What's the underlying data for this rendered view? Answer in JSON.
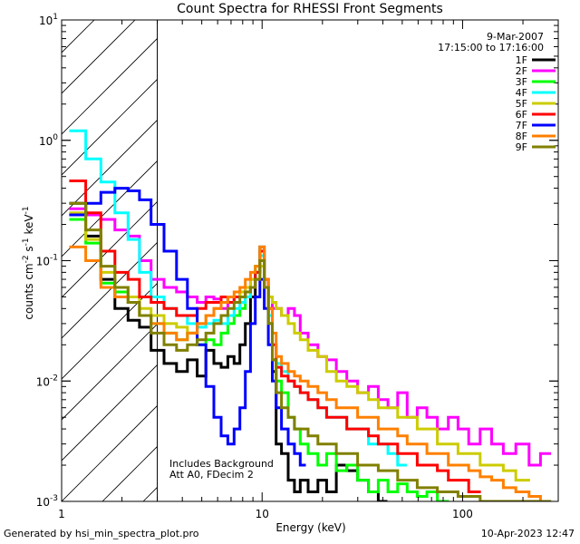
{
  "chart_data": {
    "type": "line",
    "title": "Count Spectra for RHESSI Front Segments",
    "xlabel": "Energy (keV)",
    "ylabel": "counts cm^-2 s^-1 keV^-1",
    "xscale": "log",
    "yscale": "log",
    "xlim": [
      1,
      300
    ],
    "ylim": [
      0.001,
      10
    ],
    "x_ticks": [
      {
        "value": 1,
        "label": "1"
      },
      {
        "value": 10,
        "label": "10"
      },
      {
        "value": 100,
        "label": "100"
      }
    ],
    "y_ticks": [
      {
        "value": 0.001,
        "base": "10",
        "exp": "-3"
      },
      {
        "value": 0.01,
        "base": "10",
        "exp": "-2"
      },
      {
        "value": 0.1,
        "base": "10",
        "exp": "-1"
      },
      {
        "value": 1,
        "base": "10",
        "exp": "0"
      },
      {
        "value": 10,
        "base": "10",
        "exp": "1"
      }
    ],
    "date": "9-Mar-2007",
    "time_range": "17:15:00 to 17:16:00",
    "excluded_region_max_energy": 3,
    "annotations": [
      "Includes Background",
      "Att A0, FDecim 2"
    ],
    "series": [
      {
        "name": "1F",
        "color": "#000000",
        "x": [
          1.2,
          1.45,
          1.7,
          2.0,
          2.3,
          2.6,
          3.0,
          3.5,
          4.0,
          4.5,
          5.0,
          5.5,
          6.0,
          6.5,
          7.0,
          7.5,
          8.0,
          8.5,
          9.0,
          9.5,
          10.0,
          10.5,
          11.0,
          11.5,
          12.0,
          13.0,
          14.0,
          15.0,
          16.0,
          18.0,
          20.0,
          22.0,
          25.0,
          28.0,
          32.0,
          36.0,
          40.0
        ],
        "values": [
          0.3,
          0.16,
          0.07,
          0.04,
          0.032,
          0.028,
          0.018,
          0.014,
          0.012,
          0.015,
          0.011,
          0.018,
          0.014,
          0.013,
          0.016,
          0.014,
          0.02,
          0.03,
          0.05,
          0.08,
          0.13,
          0.07,
          0.03,
          0.012,
          0.003,
          0.0025,
          0.0015,
          0.0012,
          0.0015,
          0.0012,
          0.0015,
          0.0012,
          0.002,
          0.0018,
          0.0015,
          0.0012,
          0.001
        ]
      },
      {
        "name": "2F",
        "color": "#ff00ff",
        "x": [
          1.2,
          1.45,
          1.7,
          2.0,
          2.3,
          2.6,
          3.0,
          3.5,
          4.0,
          4.5,
          5.0,
          5.5,
          6.0,
          6.5,
          7.0,
          7.5,
          8.0,
          8.5,
          9.0,
          9.5,
          10.0,
          10.5,
          11.0,
          11.5,
          12.0,
          13.0,
          14.0,
          15.0,
          16.0,
          18.0,
          20.0,
          22.0,
          25.0,
          28.0,
          32.0,
          36.0,
          40.0,
          45.0,
          50.0,
          56.0,
          63.0,
          70.0,
          80.0,
          90.0,
          100.0,
          115.0,
          130.0,
          150.0,
          170.0,
          200.0,
          230.0,
          260.0
        ],
        "values": [
          0.27,
          0.24,
          0.22,
          0.18,
          0.16,
          0.1,
          0.07,
          0.06,
          0.055,
          0.05,
          0.045,
          0.05,
          0.048,
          0.04,
          0.045,
          0.05,
          0.055,
          0.06,
          0.07,
          0.08,
          0.1,
          0.06,
          0.05,
          0.04,
          0.04,
          0.035,
          0.04,
          0.035,
          0.025,
          0.02,
          0.016,
          0.015,
          0.012,
          0.01,
          0.008,
          0.009,
          0.007,
          0.006,
          0.008,
          0.005,
          0.006,
          0.005,
          0.004,
          0.005,
          0.004,
          0.003,
          0.004,
          0.003,
          0.0025,
          0.003,
          0.002,
          0.0025
        ]
      },
      {
        "name": "3F",
        "color": "#00ff00",
        "x": [
          1.2,
          1.45,
          1.7,
          2.0,
          2.3,
          2.6,
          3.0,
          3.5,
          4.0,
          4.5,
          5.0,
          5.5,
          6.0,
          6.5,
          7.0,
          7.5,
          8.0,
          8.5,
          9.0,
          9.5,
          10.0,
          10.5,
          11.0,
          11.5,
          12.0,
          13.0,
          14.0,
          15.0,
          16.0,
          18.0,
          20.0,
          22.0,
          25.0,
          28.0,
          32.0,
          36.0,
          40.0,
          45.0,
          50.0,
          56.0,
          63.0,
          70.0,
          80.0
        ],
        "values": [
          0.22,
          0.14,
          0.065,
          0.055,
          0.045,
          0.035,
          0.03,
          0.025,
          0.022,
          0.025,
          0.02,
          0.022,
          0.02,
          0.025,
          0.03,
          0.035,
          0.04,
          0.05,
          0.06,
          0.09,
          0.12,
          0.06,
          0.03,
          0.015,
          0.01,
          0.008,
          0.005,
          0.004,
          0.003,
          0.0025,
          0.002,
          0.0025,
          0.0018,
          0.002,
          0.0015,
          0.0012,
          0.0015,
          0.0012,
          0.0014,
          0.0012,
          0.0011,
          0.0012,
          0.001
        ]
      },
      {
        "name": "4F",
        "color": "#00ffff",
        "x": [
          1.2,
          1.45,
          1.7,
          2.0,
          2.3,
          2.6,
          3.0,
          3.5,
          4.0,
          4.5,
          5.0,
          5.5,
          6.0,
          6.5,
          7.0,
          7.5,
          8.0,
          8.5,
          9.0,
          9.5,
          10.0,
          10.5,
          11.0,
          11.5,
          12.0,
          13.0,
          14.0,
          15.0,
          16.0,
          18.0,
          20.0,
          22.0,
          25.0,
          28.0,
          32.0,
          36.0,
          40.0,
          45.0,
          50.0
        ],
        "values": [
          1.2,
          0.7,
          0.45,
          0.25,
          0.15,
          0.08,
          0.05,
          0.04,
          0.035,
          0.03,
          0.028,
          0.03,
          0.032,
          0.03,
          0.035,
          0.04,
          0.045,
          0.05,
          0.06,
          0.08,
          0.11,
          0.06,
          0.035,
          0.02,
          0.014,
          0.012,
          0.01,
          0.009,
          0.008,
          0.007,
          0.006,
          0.005,
          0.005,
          0.004,
          0.004,
          0.003,
          0.003,
          0.0025,
          0.002
        ]
      },
      {
        "name": "5F",
        "color": "#cccc00",
        "x": [
          1.2,
          1.45,
          1.7,
          2.0,
          2.3,
          2.6,
          3.0,
          3.5,
          4.0,
          4.5,
          5.0,
          5.5,
          6.0,
          6.5,
          7.0,
          7.5,
          8.0,
          8.5,
          9.0,
          9.5,
          10.0,
          10.5,
          11.0,
          11.5,
          12.0,
          13.0,
          14.0,
          15.0,
          16.0,
          18.0,
          20.0,
          22.0,
          25.0,
          28.0,
          32.0,
          36.0,
          40.0,
          45.0,
          50.0,
          56.0,
          63.0,
          70.0,
          80.0,
          90.0,
          100.0,
          115.0,
          130.0,
          150.0,
          170.0,
          200.0
        ],
        "values": [
          0.25,
          0.15,
          0.08,
          0.06,
          0.05,
          0.04,
          0.035,
          0.03,
          0.028,
          0.025,
          0.03,
          0.035,
          0.04,
          0.045,
          0.05,
          0.05,
          0.055,
          0.06,
          0.07,
          0.07,
          0.09,
          0.06,
          0.05,
          0.045,
          0.04,
          0.035,
          0.03,
          0.025,
          0.022,
          0.018,
          0.016,
          0.012,
          0.01,
          0.009,
          0.008,
          0.007,
          0.006,
          0.006,
          0.005,
          0.005,
          0.004,
          0.004,
          0.003,
          0.003,
          0.0025,
          0.0025,
          0.002,
          0.002,
          0.0018,
          0.0015
        ]
      },
      {
        "name": "6F",
        "color": "#ff0000",
        "x": [
          1.2,
          1.45,
          1.7,
          2.0,
          2.3,
          2.6,
          3.0,
          3.5,
          4.0,
          4.5,
          5.0,
          5.5,
          6.0,
          6.5,
          7.0,
          7.5,
          8.0,
          8.5,
          9.0,
          9.5,
          10.0,
          10.5,
          11.0,
          11.5,
          12.0,
          13.0,
          14.0,
          15.0,
          16.0,
          18.0,
          20.0,
          22.0,
          25.0,
          28.0,
          32.0,
          36.0,
          40.0,
          45.0,
          50.0,
          56.0,
          63.0,
          70.0,
          80.0,
          90.0,
          100.0,
          115.0
        ],
        "values": [
          0.46,
          0.25,
          0.12,
          0.08,
          0.07,
          0.05,
          0.045,
          0.04,
          0.035,
          0.035,
          0.04,
          0.045,
          0.045,
          0.05,
          0.045,
          0.05,
          0.05,
          0.055,
          0.06,
          0.08,
          0.12,
          0.07,
          0.04,
          0.02,
          0.013,
          0.011,
          0.01,
          0.009,
          0.008,
          0.007,
          0.006,
          0.005,
          0.005,
          0.004,
          0.004,
          0.0035,
          0.003,
          0.003,
          0.0025,
          0.0025,
          0.002,
          0.002,
          0.0018,
          0.0015,
          0.0015,
          0.0012
        ]
      },
      {
        "name": "7F",
        "color": "#0000ff",
        "x": [
          1.2,
          1.45,
          1.7,
          2.0,
          2.3,
          2.6,
          3.0,
          3.5,
          4.0,
          4.5,
          5.0,
          5.5,
          6.0,
          6.5,
          7.0,
          7.5,
          8.0,
          8.5,
          9.0,
          9.5,
          10.0,
          10.5,
          11.0,
          11.5,
          12.0,
          13.0,
          14.0,
          15.0,
          16.0
        ],
        "values": [
          0.24,
          0.3,
          0.37,
          0.4,
          0.38,
          0.32,
          0.2,
          0.12,
          0.07,
          0.04,
          0.02,
          0.009,
          0.005,
          0.0035,
          0.003,
          0.004,
          0.006,
          0.012,
          0.03,
          0.05,
          0.07,
          0.04,
          0.02,
          0.01,
          0.006,
          0.004,
          0.003,
          0.0025,
          0.002
        ]
      },
      {
        "name": "8F",
        "color": "#ff8000",
        "x": [
          1.2,
          1.45,
          1.7,
          2.0,
          2.3,
          2.6,
          3.0,
          3.5,
          4.0,
          4.5,
          5.0,
          5.5,
          6.0,
          6.5,
          7.0,
          7.5,
          8.0,
          8.5,
          9.0,
          9.5,
          10.0,
          10.5,
          11.0,
          11.5,
          12.0,
          13.0,
          14.0,
          15.0,
          16.0,
          18.0,
          20.0,
          22.0,
          25.0,
          28.0,
          32.0,
          36.0,
          40.0,
          45.0,
          50.0,
          56.0,
          63.0,
          70.0,
          80.0,
          90.0,
          100.0,
          115.0,
          130.0,
          150.0,
          170.0,
          200.0,
          230.0,
          260.0
        ],
        "values": [
          0.13,
          0.1,
          0.06,
          0.05,
          0.045,
          0.035,
          0.03,
          0.025,
          0.022,
          0.025,
          0.03,
          0.035,
          0.04,
          0.045,
          0.05,
          0.055,
          0.06,
          0.07,
          0.08,
          0.09,
          0.13,
          0.07,
          0.04,
          0.025,
          0.016,
          0.014,
          0.012,
          0.011,
          0.01,
          0.009,
          0.008,
          0.007,
          0.006,
          0.006,
          0.005,
          0.005,
          0.004,
          0.004,
          0.0035,
          0.003,
          0.003,
          0.0025,
          0.0025,
          0.002,
          0.002,
          0.0018,
          0.0016,
          0.0015,
          0.0013,
          0.0012,
          0.0011,
          0.001
        ]
      },
      {
        "name": "9F",
        "color": "#808000",
        "x": [
          1.2,
          1.45,
          1.7,
          2.0,
          2.3,
          2.6,
          3.0,
          3.5,
          4.0,
          4.5,
          5.0,
          5.5,
          6.0,
          6.5,
          7.0,
          7.5,
          8.0,
          8.5,
          9.0,
          9.5,
          10.0,
          10.5,
          11.0,
          11.5,
          12.0,
          13.0,
          14.0,
          15.0,
          16.0,
          18.0,
          20.0,
          22.0,
          25.0,
          28.0,
          32.0,
          36.0,
          40.0,
          45.0,
          50.0,
          56.0,
          63.0,
          70.0,
          80.0,
          90.0,
          100.0,
          115.0,
          130.0,
          150.0,
          170.0,
          200.0,
          230.0,
          260.0
        ],
        "values": [
          0.3,
          0.18,
          0.09,
          0.06,
          0.045,
          0.035,
          0.025,
          0.02,
          0.018,
          0.02,
          0.022,
          0.025,
          0.03,
          0.035,
          0.04,
          0.045,
          0.05,
          0.055,
          0.06,
          0.07,
          0.1,
          0.06,
          0.03,
          0.015,
          0.008,
          0.006,
          0.005,
          0.004,
          0.004,
          0.0035,
          0.003,
          0.003,
          0.0025,
          0.0025,
          0.002,
          0.002,
          0.0018,
          0.0018,
          0.0015,
          0.0015,
          0.0013,
          0.0013,
          0.0012,
          0.0012,
          0.0011,
          0.0011,
          0.001,
          0.001,
          0.001,
          0.001,
          0.001,
          0.001
        ]
      }
    ]
  },
  "footer": {
    "generated_by": "Generated by hsi_min_spectra_plot.pro",
    "timestamp": "10-Apr-2023 12:47"
  }
}
